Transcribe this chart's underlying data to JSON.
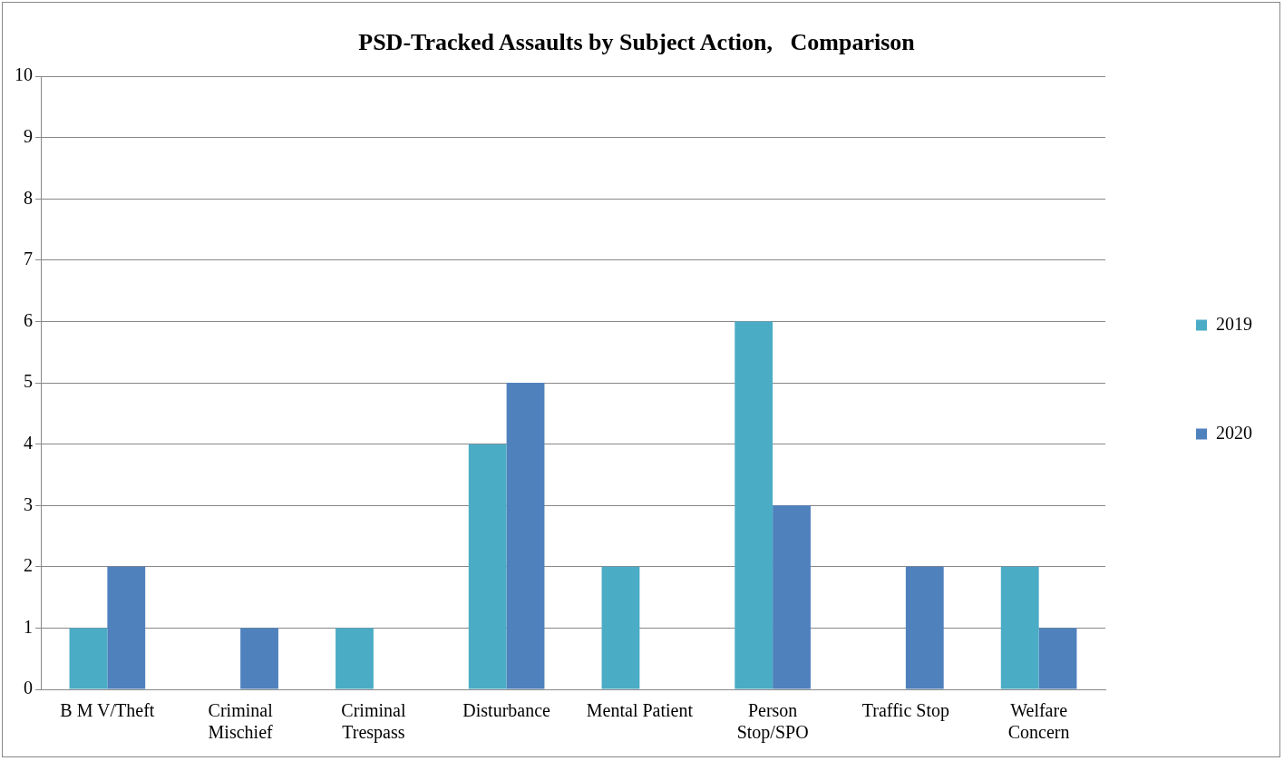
{
  "chart_data": {
    "type": "bar",
    "title": "PSD-Tracked Assaults by Subject Action,   Comparison",
    "categories": [
      "B M V/Theft",
      "Criminal Mischief",
      "Criminal Trespass",
      "Disturbance",
      "Mental Patient",
      "Person Stop/SPO",
      "Traffic Stop",
      "Welfare Concern"
    ],
    "series": [
      {
        "name": "2019",
        "color": "#4bacc6",
        "values": [
          1,
          0,
          1,
          4,
          2,
          6,
          0,
          2
        ]
      },
      {
        "name": "2020",
        "color": "#4f81bd",
        "values": [
          2,
          1,
          0,
          5,
          0,
          3,
          2,
          1
        ]
      }
    ],
    "ylim": [
      0,
      10
    ],
    "yticks": [
      0,
      1,
      2,
      3,
      4,
      5,
      6,
      7,
      8,
      9,
      10
    ],
    "grid": "y",
    "legend": "right"
  }
}
